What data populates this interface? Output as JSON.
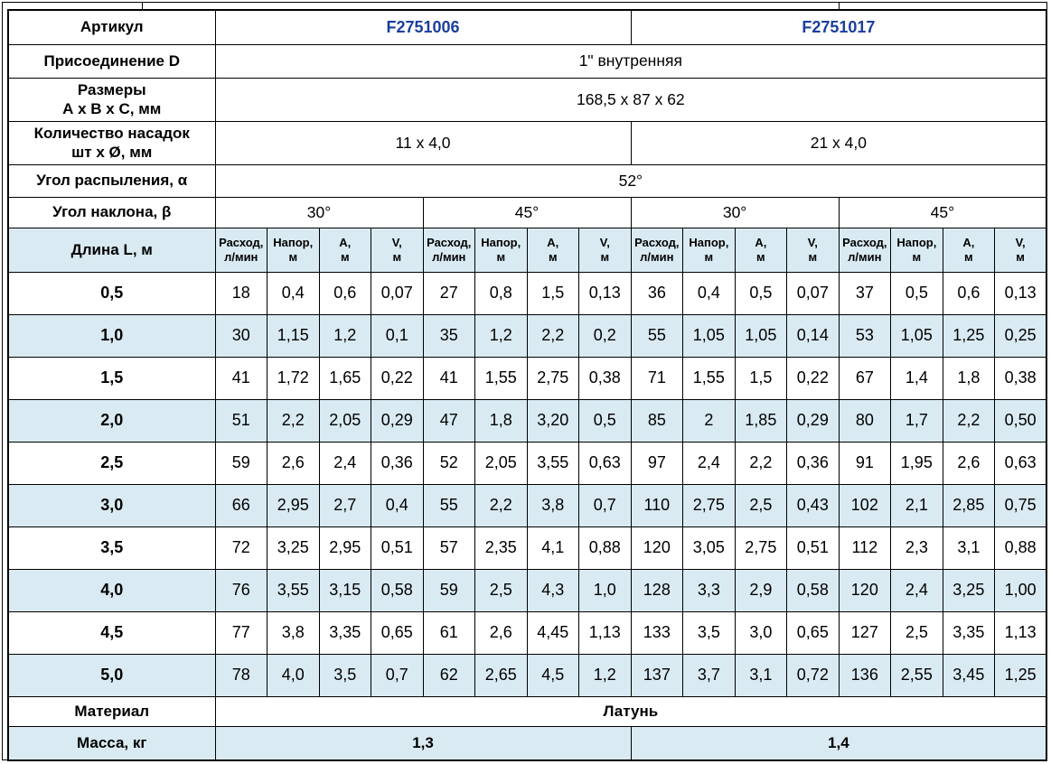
{
  "colors": {
    "article_blue": "#1b3f9e",
    "row_shade": "#d9eaf2"
  },
  "info": {
    "article": {
      "label": "Артикул",
      "values": [
        "F2751006",
        "F2751017"
      ]
    },
    "connection": {
      "label": "Присоединение D",
      "value": "1\" внутренняя"
    },
    "dimensions": {
      "label": "Размеры\nА х В х С, мм",
      "value": "168,5 x 87 x 62"
    },
    "nozzles": {
      "label": "Количество насадок\nшт х Ø, мм",
      "values": [
        "11 x 4,0",
        "21 x 4,0"
      ]
    },
    "spray_angle": {
      "label": "Угол распыления, α",
      "value": "52°"
    },
    "tilt_angle": {
      "label": "Угол наклона, β",
      "values": [
        "30°",
        "45°",
        "30°",
        "45°"
      ]
    }
  },
  "table": {
    "length_header": "Длина L, м",
    "sub_headers": [
      "Расход,\nл/мин",
      "Напор,\nм",
      "А,\nм",
      "V,\nм"
    ],
    "rows": [
      {
        "length": "0,5",
        "values": [
          "18",
          "0,4",
          "0,6",
          "0,07",
          "27",
          "0,8",
          "1,5",
          "0,13",
          "36",
          "0,4",
          "0,5",
          "0,07",
          "37",
          "0,5",
          "0,6",
          "0,13"
        ]
      },
      {
        "length": "1,0",
        "values": [
          "30",
          "1,15",
          "1,2",
          "0,1",
          "35",
          "1,2",
          "2,2",
          "0,2",
          "55",
          "1,05",
          "1,05",
          "0,14",
          "53",
          "1,05",
          "1,25",
          "0,25"
        ]
      },
      {
        "length": "1,5",
        "values": [
          "41",
          "1,72",
          "1,65",
          "0,22",
          "41",
          "1,55",
          "2,75",
          "0,38",
          "71",
          "1,55",
          "1,5",
          "0,22",
          "67",
          "1,4",
          "1,8",
          "0,38"
        ]
      },
      {
        "length": "2,0",
        "values": [
          "51",
          "2,2",
          "2,05",
          "0,29",
          "47",
          "1,8",
          "3,20",
          "0,5",
          "85",
          "2",
          "1,85",
          "0,29",
          "80",
          "1,7",
          "2,2",
          "0,50"
        ]
      },
      {
        "length": "2,5",
        "values": [
          "59",
          "2,6",
          "2,4",
          "0,36",
          "52",
          "2,05",
          "3,55",
          "0,63",
          "97",
          "2,4",
          "2,2",
          "0,36",
          "91",
          "1,95",
          "2,6",
          "0,63"
        ]
      },
      {
        "length": "3,0",
        "values": [
          "66",
          "2,95",
          "2,7",
          "0,4",
          "55",
          "2,2",
          "3,8",
          "0,7",
          "110",
          "2,75",
          "2,5",
          "0,43",
          "102",
          "2,1",
          "2,85",
          "0,75"
        ]
      },
      {
        "length": "3,5",
        "values": [
          "72",
          "3,25",
          "2,95",
          "0,51",
          "57",
          "2,35",
          "4,1",
          "0,88",
          "120",
          "3,05",
          "2,75",
          "0,51",
          "112",
          "2,3",
          "3,1",
          "0,88"
        ]
      },
      {
        "length": "4,0",
        "values": [
          "76",
          "3,55",
          "3,15",
          "0,58",
          "59",
          "2,5",
          "4,3",
          "1,0",
          "128",
          "3,3",
          "2,9",
          "0,58",
          "120",
          "2,4",
          "3,25",
          "1,00"
        ]
      },
      {
        "length": "4,5",
        "values": [
          "77",
          "3,8",
          "3,35",
          "0,65",
          "61",
          "2,6",
          "4,45",
          "1,13",
          "133",
          "3,5",
          "3,0",
          "0,65",
          "127",
          "2,5",
          "3,35",
          "1,13"
        ]
      },
      {
        "length": "5,0",
        "values": [
          "78",
          "4,0",
          "3,5",
          "0,7",
          "62",
          "2,65",
          "4,5",
          "1,2",
          "137",
          "3,7",
          "3,1",
          "0,72",
          "136",
          "2,55",
          "3,45",
          "1,25"
        ]
      }
    ]
  },
  "footer": {
    "material": {
      "label": "Материал",
      "value": "Латунь"
    },
    "mass": {
      "label": "Масса, кг",
      "values": [
        "1,3",
        "1,4"
      ]
    }
  }
}
